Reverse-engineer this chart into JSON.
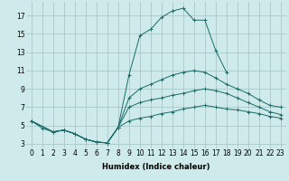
{
  "xlabel": "Humidex (Indice chaleur)",
  "ylabel": "",
  "background_color": "#ceeaea",
  "grid_color": "#a8c8c8",
  "line_color": "#1a6b6b",
  "xlim": [
    -0.5,
    23.5
  ],
  "ylim": [
    2.5,
    18.5
  ],
  "xticks": [
    0,
    1,
    2,
    3,
    4,
    5,
    6,
    7,
    8,
    9,
    10,
    11,
    12,
    13,
    14,
    15,
    16,
    17,
    18,
    19,
    20,
    21,
    22,
    23
  ],
  "yticks": [
    3,
    5,
    7,
    9,
    11,
    13,
    15,
    17
  ],
  "lines": [
    {
      "x": [
        0,
        1,
        2,
        3,
        4,
        5,
        6,
        7,
        8,
        9,
        10,
        11,
        12,
        13,
        14,
        15,
        16,
        17,
        18,
        19,
        20,
        21,
        22,
        23
      ],
      "y": [
        5.5,
        4.7,
        4.3,
        4.5,
        4.1,
        3.5,
        3.2,
        3.1,
        4.8,
        10.5,
        14.8,
        15.5,
        16.8,
        17.5,
        17.8,
        16.5,
        16.5,
        13.2,
        10.8,
        null,
        null,
        null,
        null,
        null
      ]
    },
    {
      "x": [
        0,
        2,
        3,
        4,
        5,
        6,
        7,
        8,
        9,
        10,
        11,
        12,
        13,
        14,
        15,
        16,
        17,
        18,
        19,
        20,
        21,
        22,
        23
      ],
      "y": [
        5.5,
        4.3,
        4.5,
        4.1,
        3.5,
        3.2,
        3.1,
        4.8,
        8.0,
        9.0,
        9.5,
        10.0,
        10.5,
        10.8,
        11.0,
        10.8,
        10.2,
        9.5,
        9.0,
        8.5,
        7.8,
        7.2,
        7.0
      ]
    },
    {
      "x": [
        0,
        2,
        3,
        4,
        5,
        6,
        7,
        8,
        9,
        10,
        11,
        12,
        13,
        14,
        15,
        16,
        17,
        18,
        19,
        20,
        21,
        22,
        23
      ],
      "y": [
        5.5,
        4.3,
        4.5,
        4.1,
        3.5,
        3.2,
        3.1,
        4.8,
        7.0,
        7.5,
        7.8,
        8.0,
        8.3,
        8.5,
        8.8,
        9.0,
        8.8,
        8.5,
        8.0,
        7.5,
        7.0,
        6.5,
        6.2
      ]
    },
    {
      "x": [
        0,
        2,
        3,
        4,
        5,
        6,
        7,
        8,
        9,
        10,
        11,
        12,
        13,
        14,
        15,
        16,
        17,
        18,
        19,
        20,
        21,
        22,
        23
      ],
      "y": [
        5.5,
        4.3,
        4.5,
        4.1,
        3.5,
        3.2,
        3.1,
        4.8,
        5.5,
        5.8,
        6.0,
        6.3,
        6.5,
        6.8,
        7.0,
        7.2,
        7.0,
        6.8,
        6.7,
        6.5,
        6.3,
        6.0,
        5.8
      ]
    }
  ],
  "marker": "+",
  "markersize": 2.5,
  "linewidth": 0.7,
  "tick_fontsize": 5.5,
  "xlabel_fontsize": 6.0
}
